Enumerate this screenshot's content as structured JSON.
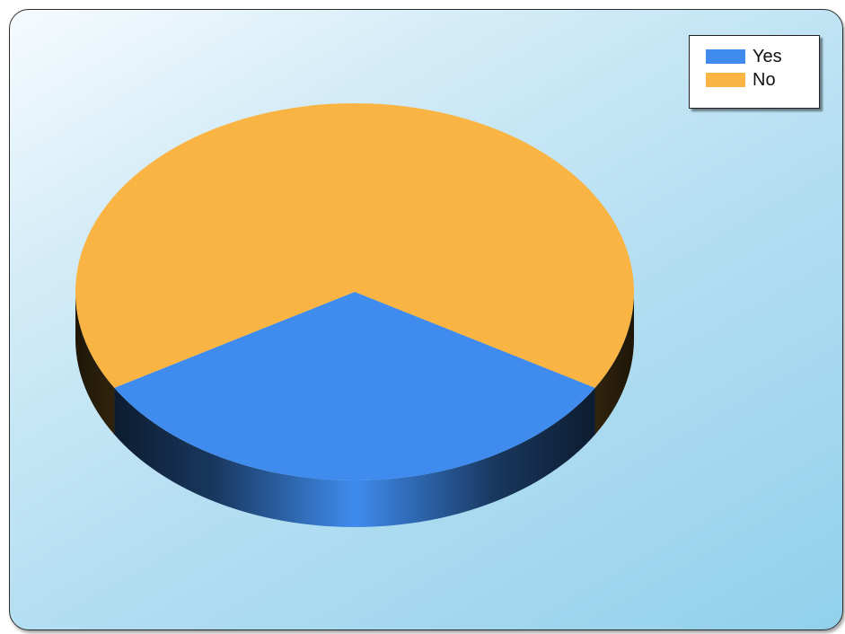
{
  "chart_data": {
    "type": "pie",
    "title": "",
    "three_d": true,
    "legend_position": "top-right",
    "series": [
      {
        "name": "Yes",
        "value": 33,
        "color": "#3f8cee"
      },
      {
        "name": "No",
        "value": 67,
        "color": "#f9b443"
      }
    ]
  }
}
